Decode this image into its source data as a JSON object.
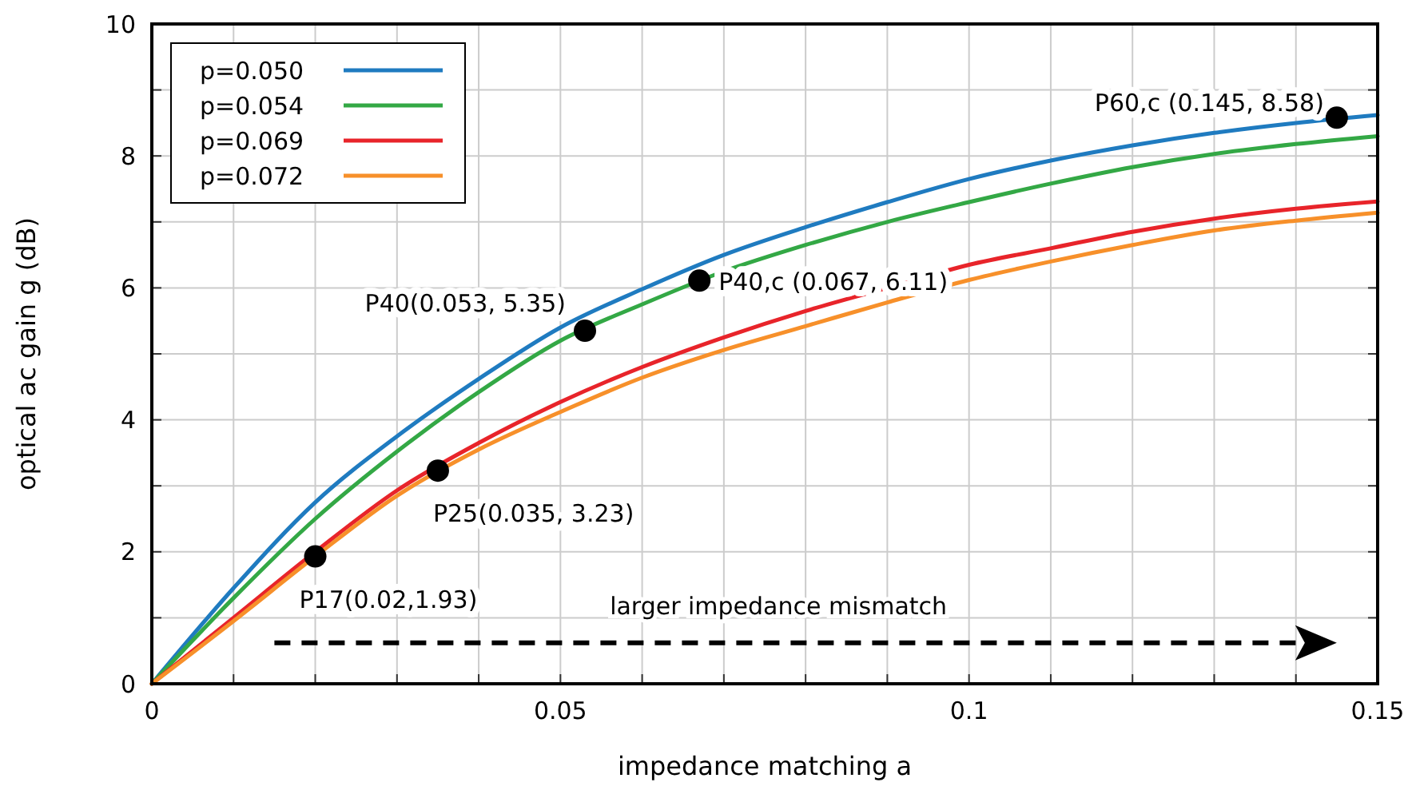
{
  "chart_data": {
    "type": "line",
    "xlabel": "impedance matching a",
    "ylabel": "optical ac gain g (dB)",
    "x": [
      0,
      0.01,
      0.02,
      0.03,
      0.04,
      0.05,
      0.06,
      0.07,
      0.08,
      0.09,
      0.1,
      0.11,
      0.12,
      0.13,
      0.14,
      0.15
    ],
    "series": [
      {
        "name": "p=0.050",
        "color": "#1f7bc0",
        "values": [
          0,
          1.45,
          2.75,
          3.75,
          4.62,
          5.4,
          5.98,
          6.5,
          6.92,
          7.3,
          7.65,
          7.93,
          8.16,
          8.35,
          8.5,
          8.62
        ]
      },
      {
        "name": "p=0.054",
        "color": "#33a845",
        "values": [
          0,
          1.3,
          2.5,
          3.52,
          4.42,
          5.2,
          5.75,
          6.25,
          6.65,
          7.0,
          7.3,
          7.58,
          7.83,
          8.03,
          8.18,
          8.3
        ]
      },
      {
        "name": "p=0.069",
        "color": "#e8242a",
        "values": [
          0,
          1.0,
          2.0,
          2.93,
          3.65,
          4.27,
          4.8,
          5.25,
          5.65,
          6.0,
          6.35,
          6.6,
          6.85,
          7.05,
          7.2,
          7.31
        ]
      },
      {
        "name": "p=0.072",
        "color": "#f7902a",
        "values": [
          0,
          0.95,
          1.93,
          2.85,
          3.55,
          4.12,
          4.64,
          5.06,
          5.42,
          5.78,
          6.12,
          6.4,
          6.65,
          6.87,
          7.02,
          7.14
        ]
      },
      {
        "type": "scatter",
        "color": "#000000",
        "marker": "circle",
        "x": [
          0.02,
          0.035,
          0.053,
          0.067,
          0.145
        ],
        "values": [
          1.93,
          3.23,
          5.35,
          6.11,
          8.58
        ]
      }
    ],
    "annotations": [
      {
        "text": "P17(0.02,1.93)",
        "x": 0.02,
        "y": 1.93
      },
      {
        "text": "P25(0.035, 3.23)",
        "x": 0.035,
        "y": 3.23
      },
      {
        "text": "P40(0.053, 5.35)",
        "x": 0.053,
        "y": 5.35
      },
      {
        "text": "P40,c (0.067, 6.11)",
        "x": 0.067,
        "y": 6.11
      },
      {
        "text": "P60,c (0.145, 8.58)",
        "x": 0.145,
        "y": 8.58
      },
      "larger impedance mismatch"
    ],
    "xlim": [
      0,
      0.15
    ],
    "xticks": [
      0,
      {
        "value": 0.01,
        "label": null
      },
      {
        "value": 0.02,
        "label": null
      },
      {
        "value": 0.03,
        "label": null
      },
      {
        "value": 0.04,
        "label": null
      },
      0.05,
      {
        "value": 0.06,
        "label": null
      },
      {
        "value": 0.07,
        "label": null
      },
      {
        "value": 0.08,
        "label": null
      },
      {
        "value": 0.09,
        "label": null
      },
      0.1,
      {
        "value": 0.11,
        "label": null
      },
      {
        "value": 0.12,
        "label": null
      },
      {
        "value": 0.13,
        "label": null
      },
      {
        "value": 0.14,
        "label": null
      },
      0.15
    ],
    "ylim": [
      0,
      10
    ],
    "yticks": [
      0,
      {
        "value": 1,
        "label": null
      },
      2,
      {
        "value": 3,
        "label": null
      },
      4,
      {
        "value": 5,
        "label": null
      },
      6,
      {
        "value": 7,
        "label": null
      },
      8,
      {
        "value": 9,
        "label": null
      },
      10
    ],
    "grid": true,
    "legend": "top left",
    "line_style": "solid"
  }
}
